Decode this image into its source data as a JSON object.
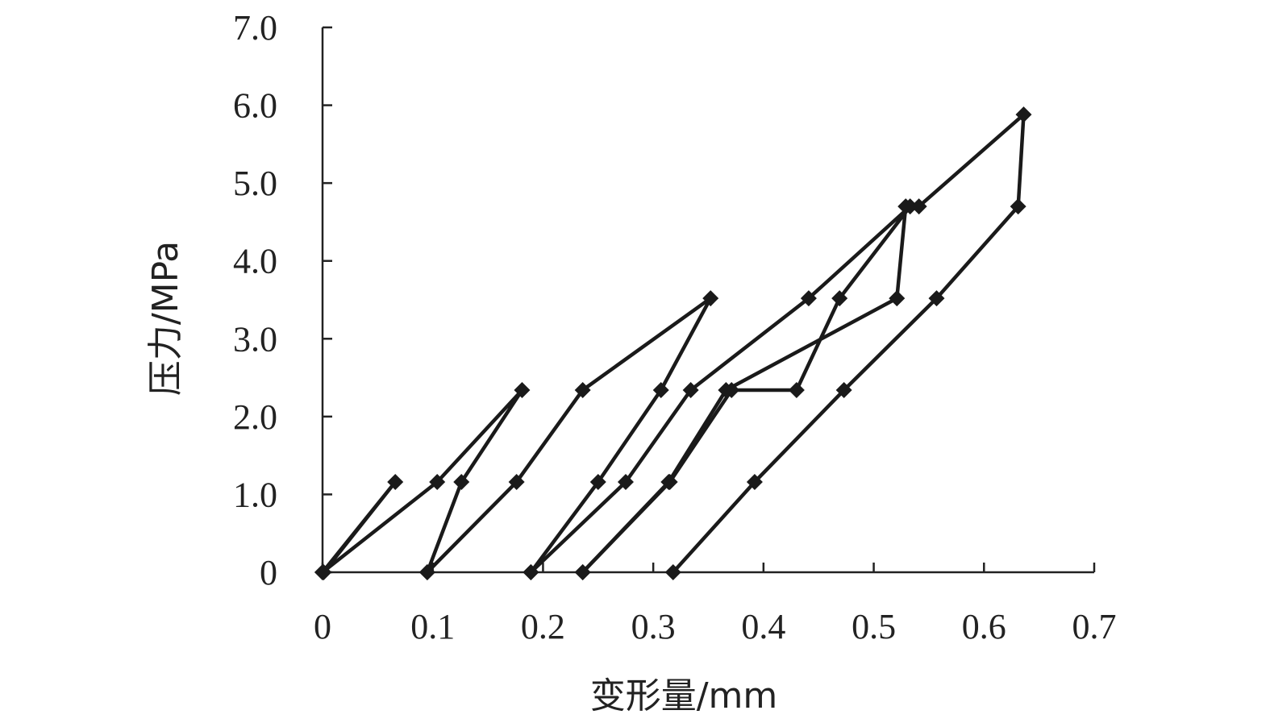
{
  "chart_data": {
    "type": "line",
    "title": "",
    "xlabel": "变形量/mm",
    "ylabel": "压力/MPa",
    "xlim": [
      0,
      0.7
    ],
    "ylim": [
      0,
      7.0
    ],
    "x_ticks": [
      0,
      0.1,
      0.2,
      0.3,
      0.4,
      0.5,
      0.6,
      0.7
    ],
    "x_tick_labels": [
      "0",
      "0.1",
      "0.2",
      "0.3",
      "0.4",
      "0.5",
      "0.6",
      "0.7"
    ],
    "y_ticks": [
      0,
      1.0,
      2.0,
      3.0,
      4.0,
      5.0,
      6.0,
      7.0
    ],
    "y_tick_labels": [
      "0",
      "1.0",
      "2.0",
      "3.0",
      "4.0",
      "5.0",
      "6.0",
      "7.0"
    ],
    "grid": false,
    "legend": false,
    "line_color": "#1a1a1a",
    "marker": "diamond-icon",
    "series": [
      {
        "x": [
          0,
          0.066,
          0.001
        ],
        "y": [
          0,
          1.16,
          0
        ]
      },
      {
        "x": [
          0,
          0.104,
          0.181,
          0.126,
          0.095
        ],
        "y": [
          0,
          1.16,
          2.34,
          1.16,
          0
        ]
      },
      {
        "x": [
          0.095,
          0.176,
          0.236,
          0.352,
          0.307,
          0.25,
          0.189
        ],
        "y": [
          0,
          1.16,
          2.34,
          3.52,
          2.34,
          1.16,
          0
        ]
      },
      {
        "x": [
          0.189,
          0.275,
          0.334,
          0.441,
          0.533,
          0.469,
          0.43,
          0.371,
          0.315,
          0.236
        ],
        "y": [
          0,
          1.16,
          2.34,
          3.52,
          4.7,
          3.52,
          2.34,
          2.34,
          1.16,
          0
        ]
      },
      {
        "x": [
          0.236,
          0.314,
          0.366,
          0.521,
          0.529,
          0.541,
          0.636,
          0.631,
          0.557,
          0.473,
          0.392,
          0.318
        ],
        "y": [
          0,
          1.16,
          2.34,
          3.52,
          4.7,
          4.7,
          5.88,
          4.7,
          3.52,
          2.34,
          1.16,
          0
        ]
      }
    ]
  }
}
